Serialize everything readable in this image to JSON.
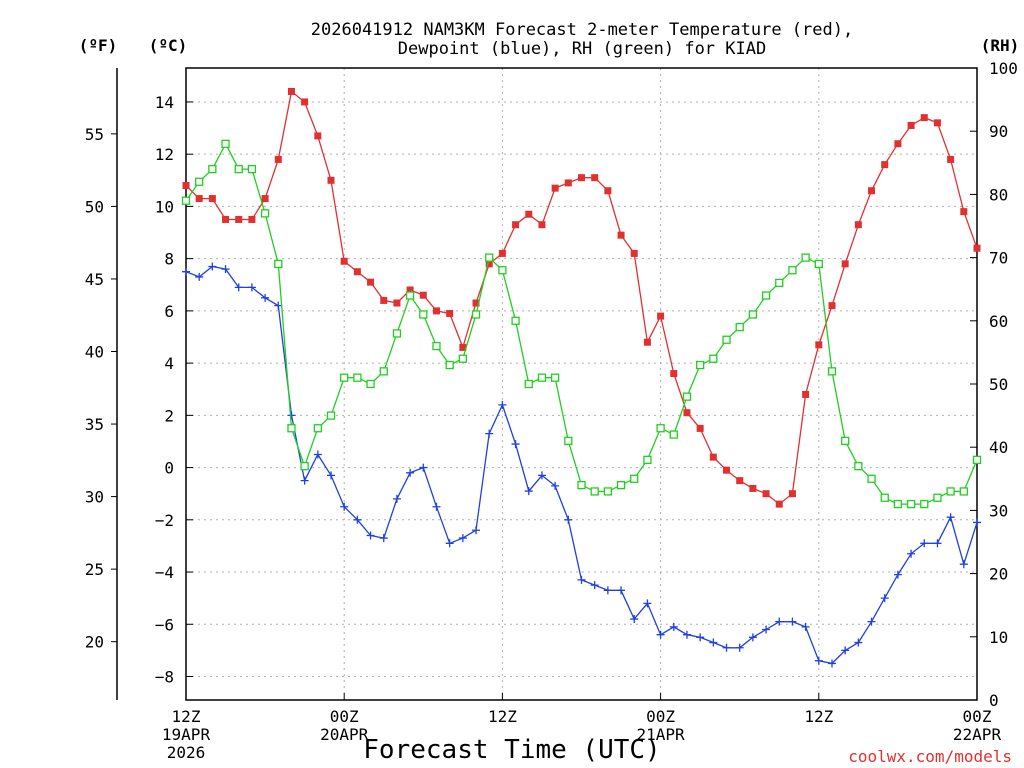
{
  "chart_data": {
    "type": "line",
    "title_line1": "2026041912 NAM3KM Forecast 2-meter Temperature (red),",
    "title_line2": "Dewpoint (blue), RH (green) for KIAD",
    "xlabel": "Forecast Time (UTC)",
    "credit": "coolwx.com/models",
    "units": {
      "fahrenheit": "(ºF)",
      "celsius": "(ºC)",
      "rh": "(RH)"
    },
    "x_range_hours": [
      0,
      60
    ],
    "celsius_range": [
      -8.9,
      15.3
    ],
    "rh_range": [
      0,
      100
    ],
    "celsius_ticks": [
      "−8",
      "−6",
      "−4",
      "−2",
      "0",
      "2",
      "4",
      "6",
      "8",
      "10",
      "12",
      "14"
    ],
    "celsius_tick_values": [
      -8,
      -6,
      -4,
      -2,
      0,
      2,
      4,
      6,
      8,
      10,
      12,
      14
    ],
    "fahrenheit_ticks": [
      "20",
      "25",
      "30",
      "35",
      "40",
      "45",
      "50",
      "55"
    ],
    "fahrenheit_tick_values": [
      20,
      25,
      30,
      35,
      40,
      45,
      50,
      55
    ],
    "rh_ticks": [
      "0",
      "10",
      "20",
      "30",
      "40",
      "50",
      "60",
      "70",
      "80",
      "90",
      "100"
    ],
    "rh_tick_values": [
      0,
      10,
      20,
      30,
      40,
      50,
      60,
      70,
      80,
      90,
      100
    ],
    "x_ticks": [
      {
        "hour": 0,
        "lines": [
          "12Z",
          "19APR",
          "2026"
        ]
      },
      {
        "hour": 12,
        "lines": [
          "00Z",
          "20APR"
        ]
      },
      {
        "hour": 24,
        "lines": [
          "12Z"
        ]
      },
      {
        "hour": 36,
        "lines": [
          "00Z",
          "21APR"
        ]
      },
      {
        "hour": 48,
        "lines": [
          "12Z"
        ]
      },
      {
        "hour": 60,
        "lines": [
          "00Z",
          "22APR"
        ]
      }
    ],
    "series": [
      {
        "name": "Temperature",
        "unit": "C",
        "color": "#e23030",
        "marker": "filled-square",
        "hours": [
          0,
          1,
          2,
          3,
          4,
          5,
          6,
          7,
          8,
          9,
          10,
          11,
          12,
          13,
          14,
          15,
          16,
          17,
          18,
          19,
          20,
          21,
          22,
          23,
          24,
          25,
          26,
          27,
          28,
          29,
          30,
          31,
          32,
          33,
          34,
          35,
          36,
          37,
          38,
          39,
          40,
          41,
          42,
          43,
          44,
          45,
          46,
          47,
          48,
          49,
          50,
          51,
          52,
          53,
          54,
          55,
          56,
          57,
          58,
          59,
          60
        ],
        "values": [
          10.8,
          10.3,
          10.3,
          9.5,
          9.5,
          9.5,
          10.3,
          11.8,
          14.4,
          14.0,
          12.7,
          11.0,
          7.9,
          7.5,
          7.1,
          6.4,
          6.3,
          6.8,
          6.6,
          6.0,
          5.9,
          4.6,
          6.3,
          7.8,
          8.2,
          9.3,
          9.7,
          9.3,
          10.7,
          10.9,
          11.1,
          11.1,
          10.6,
          8.9,
          8.2,
          4.8,
          5.8,
          3.6,
          2.1,
          1.5,
          0.4,
          -0.1,
          -0.5,
          -0.8,
          -1.0,
          -1.4,
          -1.0,
          2.8,
          4.7,
          6.2,
          7.8,
          9.3,
          10.6,
          11.6,
          12.4,
          13.1,
          13.4,
          13.2,
          11.8,
          9.8,
          8.4
        ]
      },
      {
        "name": "Dewpoint",
        "unit": "C",
        "color": "#2040e0",
        "marker": "plus",
        "hours": [
          0,
          1,
          2,
          3,
          4,
          5,
          6,
          7,
          8,
          9,
          10,
          11,
          12,
          13,
          14,
          15,
          16,
          17,
          18,
          19,
          20,
          21,
          22,
          23,
          24,
          25,
          26,
          27,
          28,
          29,
          30,
          31,
          32,
          33,
          34,
          35,
          36,
          37,
          38,
          39,
          40,
          41,
          42,
          43,
          44,
          45,
          46,
          47,
          48,
          49,
          50,
          51,
          52,
          53,
          54,
          55,
          56,
          57,
          58,
          59,
          60
        ],
        "values": [
          7.5,
          7.3,
          7.7,
          7.6,
          6.9,
          6.9,
          6.5,
          6.2,
          2.0,
          -0.5,
          0.5,
          -0.3,
          -1.5,
          -2.0,
          -2.6,
          -2.7,
          -1.2,
          -0.2,
          0.0,
          -1.5,
          -2.9,
          -2.7,
          -2.4,
          1.3,
          2.4,
          0.9,
          -0.9,
          -0.3,
          -0.7,
          -2.0,
          -4.3,
          -4.5,
          -4.7,
          -4.7,
          -5.8,
          -5.2,
          -6.4,
          -6.1,
          -6.4,
          -6.5,
          -6.7,
          -6.9,
          -6.9,
          -6.5,
          -6.2,
          -5.9,
          -5.9,
          -6.1,
          -7.4,
          -7.5,
          -7.0,
          -6.7,
          -5.9,
          -5.0,
          -4.1,
          -3.3,
          -2.9,
          -2.9,
          -1.9,
          -3.7,
          -2.1
        ]
      },
      {
        "name": "RH",
        "unit": "%",
        "color": "#20d020",
        "marker": "open-square",
        "hours": [
          0,
          1,
          2,
          3,
          4,
          5,
          6,
          7,
          8,
          9,
          10,
          11,
          12,
          13,
          14,
          15,
          16,
          17,
          18,
          19,
          20,
          21,
          22,
          23,
          24,
          25,
          26,
          27,
          28,
          29,
          30,
          31,
          32,
          33,
          34,
          35,
          36,
          37,
          38,
          39,
          40,
          41,
          42,
          43,
          44,
          45,
          46,
          47,
          48,
          49,
          50,
          51,
          52,
          53,
          54,
          55,
          56,
          57,
          58,
          59,
          60
        ],
        "values": [
          79,
          82,
          84,
          88,
          84,
          84,
          77,
          69,
          43,
          37,
          43,
          45,
          51,
          51,
          50,
          52,
          58,
          64,
          61,
          56,
          53,
          54,
          61,
          70,
          68,
          60,
          50,
          51,
          51,
          41,
          34,
          33,
          33,
          34,
          35,
          38,
          43,
          42,
          48,
          53,
          54,
          57,
          59,
          61,
          64,
          66,
          68,
          70,
          69,
          52,
          41,
          37,
          35,
          32,
          31,
          31,
          31,
          32,
          33,
          33,
          38
        ]
      }
    ]
  }
}
